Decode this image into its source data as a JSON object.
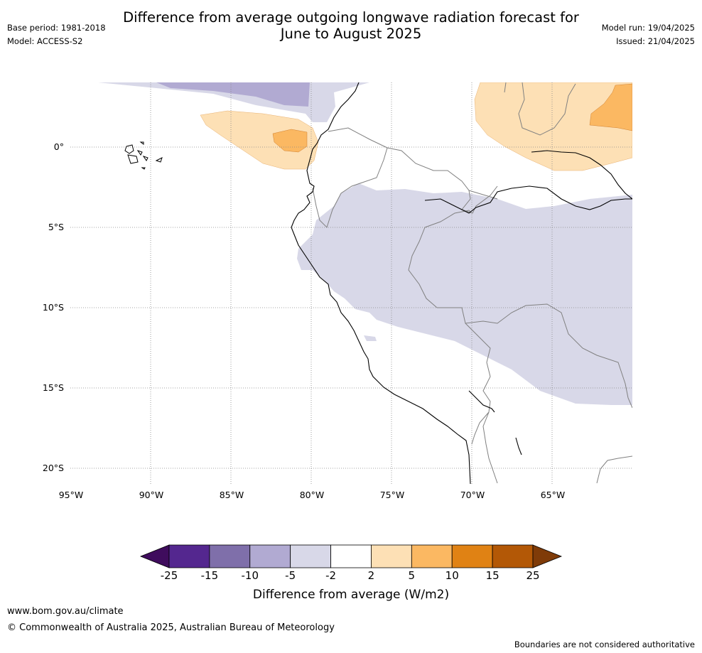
{
  "title_line1": "Difference from average outgoing longwave radiation forecast for",
  "title_line2": "June to August 2025",
  "meta_left": {
    "base_period": "Base period: 1981-2018",
    "model": "Model: ACCESS-S2"
  },
  "meta_right": {
    "model_run": "Model run: 19/04/2025",
    "issued": "Issued: 21/04/2025"
  },
  "map": {
    "lat_labels": [
      "0°",
      "5°S",
      "10°S",
      "15°S",
      "20°S"
    ],
    "lon_labels": [
      "95°W",
      "90°W",
      "85°W",
      "80°W",
      "75°W",
      "70°W",
      "65°W"
    ],
    "colors": {
      "neg_light": "#d8d8e8",
      "neg_mid": "#b1aad2",
      "pos_light": "#fde0b5",
      "pos_mid": "#fbb862",
      "coast": "#000000",
      "border": "#808080",
      "grid": "#888888"
    }
  },
  "colorbar": {
    "ticks": [
      "-25",
      "-15",
      "-10",
      "-5",
      "-2",
      "2",
      "5",
      "10",
      "15",
      "25"
    ],
    "colors": [
      "#3f0c5d",
      "#54278f",
      "#7f6faa",
      "#b1aad2",
      "#d8d8e8",
      "#ffffff",
      "#fde0b5",
      "#fbb862",
      "#e08214",
      "#b35806",
      "#7f3b08"
    ],
    "title": "Difference from average (W/m2)"
  },
  "footer": {
    "url": "www.bom.gov.au/climate",
    "copyright": "© Commonwealth of Australia 2025, Australian Bureau of Meteorology",
    "note": "Boundaries are not considered authoritative"
  }
}
